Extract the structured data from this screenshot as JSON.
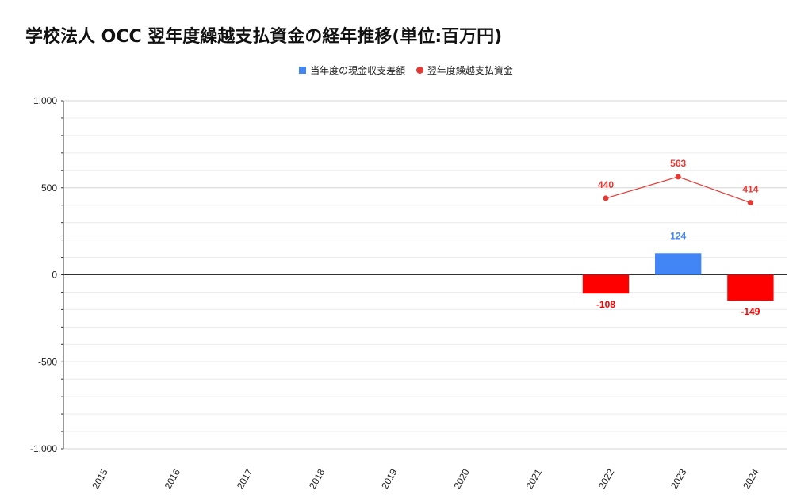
{
  "chart_data": {
    "type": "bar",
    "title": "学校法人 OCC 翌年度繰越支払資金の経年推移(単位:百万円)",
    "categories": [
      "2015",
      "2016",
      "2017",
      "2018",
      "2019",
      "2020",
      "2021",
      "2022",
      "2023",
      "2024"
    ],
    "ylim": [
      -1000,
      1000
    ],
    "yticks": [
      1000,
      500,
      0,
      -500,
      -1000
    ],
    "ytick_labels": [
      "1,000",
      "500",
      "0",
      "-500",
      "-1,000"
    ],
    "grid": true,
    "legend_position": "top-center",
    "series": [
      {
        "name": "当年度の現金収支差額",
        "type": "bar",
        "values": [
          null,
          null,
          null,
          null,
          null,
          null,
          null,
          -108,
          124,
          -149
        ],
        "labels": [
          "",
          "",
          "",
          "",
          "",
          "",
          "",
          "-108",
          "124",
          "-149"
        ],
        "color_positive": "#4285f4",
        "color_negative": "#ff0000"
      },
      {
        "name": "翌年度繰越支払資金",
        "type": "line",
        "values": [
          null,
          null,
          null,
          null,
          null,
          null,
          null,
          440,
          563,
          414
        ],
        "labels": [
          "",
          "",
          "",
          "",
          "",
          "",
          "",
          "440",
          "563",
          "414"
        ],
        "color": "#e53935"
      }
    ]
  }
}
